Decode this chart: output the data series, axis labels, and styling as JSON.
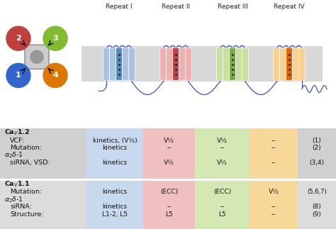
{
  "repeat_labels": [
    "Repeat I",
    "Repeat II",
    "Repeat III",
    "Repeat IV"
  ],
  "repeat_colors_light": [
    "#a8c4e0",
    "#f0b0b0",
    "#c8e0a0",
    "#f8d090"
  ],
  "repeat_colors_dark": [
    "#5588bb",
    "#bb4444",
    "#78aa44",
    "#dd6600"
  ],
  "circle_colors": [
    "#4472c4",
    "#c0504d",
    "#92d050",
    "#e36c09"
  ],
  "col_bg_blue": "#c8d8ee",
  "col_bg_red": "#f0c8c8",
  "col_bg_green": "#d8eabc",
  "col_bg_orange": "#f8dda8",
  "sec1_bg": "#d4d4d4",
  "sec2_bg": "#e0e0e0",
  "membrane_color": "#d8d8d8",
  "line_color": "#4455aa"
}
